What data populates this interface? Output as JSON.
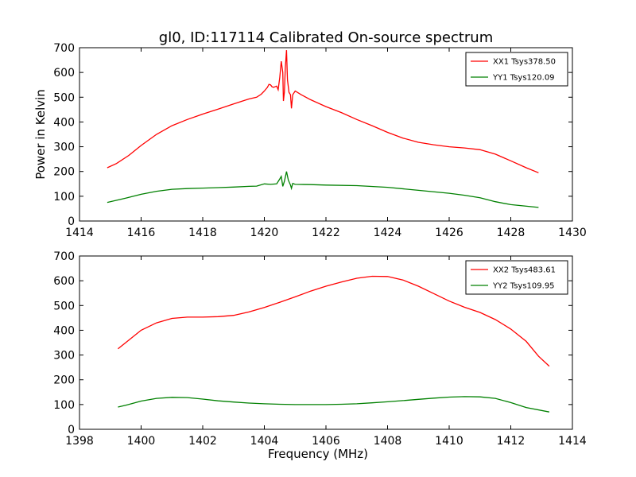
{
  "chart_data": [
    {
      "type": "line",
      "title": "gl0, ID:117114 Calibrated On-source spectrum",
      "xlabel": "",
      "ylabel": "Power in Kelvin",
      "xlim": [
        1414,
        1430
      ],
      "ylim": [
        0,
        700
      ],
      "xticks": [
        1414,
        1416,
        1418,
        1420,
        1422,
        1424,
        1426,
        1428,
        1430
      ],
      "yticks": [
        0,
        100,
        200,
        300,
        400,
        500,
        600,
        700
      ],
      "grid": false,
      "legend_position": "top-right",
      "series": [
        {
          "name": "XX1 Tsys378.50",
          "color": "#ff0000",
          "points": [
            [
              1414.9,
              215
            ],
            [
              1415.2,
              232
            ],
            [
              1415.6,
              265
            ],
            [
              1416.0,
              305
            ],
            [
              1416.5,
              350
            ],
            [
              1417.0,
              385
            ],
            [
              1417.5,
              410
            ],
            [
              1418.0,
              432
            ],
            [
              1418.5,
              452
            ],
            [
              1419.0,
              473
            ],
            [
              1419.5,
              493
            ],
            [
              1419.75,
              500
            ],
            [
              1419.9,
              512
            ],
            [
              1420.0,
              525
            ],
            [
              1420.1,
              540
            ],
            [
              1420.15,
              552
            ],
            [
              1420.2,
              550
            ],
            [
              1420.25,
              542
            ],
            [
              1420.3,
              540
            ],
            [
              1420.4,
              545
            ],
            [
              1420.45,
              530
            ],
            [
              1420.5,
              580
            ],
            [
              1420.55,
              645
            ],
            [
              1420.6,
              600
            ],
            [
              1420.62,
              485
            ],
            [
              1420.65,
              520
            ],
            [
              1420.68,
              620
            ],
            [
              1420.72,
              690
            ],
            [
              1420.75,
              570
            ],
            [
              1420.8,
              520
            ],
            [
              1420.85,
              510
            ],
            [
              1420.88,
              455
            ],
            [
              1420.92,
              510
            ],
            [
              1421.0,
              525
            ],
            [
              1421.2,
              510
            ],
            [
              1421.5,
              490
            ],
            [
              1422.0,
              462
            ],
            [
              1422.5,
              438
            ],
            [
              1423.0,
              410
            ],
            [
              1423.5,
              385
            ],
            [
              1424.0,
              358
            ],
            [
              1424.5,
              335
            ],
            [
              1425.0,
              318
            ],
            [
              1425.5,
              308
            ],
            [
              1426.0,
              300
            ],
            [
              1426.5,
              295
            ],
            [
              1427.0,
              288
            ],
            [
              1427.5,
              270
            ],
            [
              1428.0,
              243
            ],
            [
              1428.5,
              215
            ],
            [
              1428.9,
              195
            ]
          ]
        },
        {
          "name": "YY1 Tsys120.09",
          "color": "#008000",
          "points": [
            [
              1414.9,
              75
            ],
            [
              1415.5,
              92
            ],
            [
              1416.0,
              108
            ],
            [
              1416.5,
              120
            ],
            [
              1417.0,
              128
            ],
            [
              1417.5,
              131
            ],
            [
              1418.0,
              133
            ],
            [
              1418.5,
              135
            ],
            [
              1419.0,
              137
            ],
            [
              1419.5,
              140
            ],
            [
              1419.75,
              141
            ],
            [
              1420.0,
              150
            ],
            [
              1420.2,
              148
            ],
            [
              1420.4,
              150
            ],
            [
              1420.5,
              170
            ],
            [
              1420.55,
              180
            ],
            [
              1420.6,
              140
            ],
            [
              1420.65,
              160
            ],
            [
              1420.72,
              200
            ],
            [
              1420.78,
              165
            ],
            [
              1420.85,
              145
            ],
            [
              1420.88,
              132
            ],
            [
              1420.92,
              152
            ],
            [
              1421.0,
              148
            ],
            [
              1421.5,
              147
            ],
            [
              1422.0,
              145
            ],
            [
              1423.0,
              143
            ],
            [
              1424.0,
              136
            ],
            [
              1425.0,
              124
            ],
            [
              1426.0,
              112
            ],
            [
              1426.5,
              104
            ],
            [
              1427.0,
              94
            ],
            [
              1427.5,
              78
            ],
            [
              1428.0,
              66
            ],
            [
              1428.9,
              55
            ]
          ]
        }
      ]
    },
    {
      "type": "line",
      "title": "",
      "xlabel": "Frequency (MHz)",
      "ylabel": "",
      "xlim": [
        1398,
        1414
      ],
      "ylim": [
        0,
        700
      ],
      "xticks": [
        1398,
        1400,
        1402,
        1404,
        1406,
        1408,
        1410,
        1412,
        1414
      ],
      "yticks": [
        0,
        100,
        200,
        300,
        400,
        500,
        600,
        700
      ],
      "grid": false,
      "legend_position": "top-right",
      "series": [
        {
          "name": "XX2 Tsys483.61",
          "color": "#ff0000",
          "points": [
            [
              1399.25,
              325
            ],
            [
              1399.5,
              350
            ],
            [
              1400.0,
              400
            ],
            [
              1400.5,
              430
            ],
            [
              1401.0,
              448
            ],
            [
              1401.5,
              453
            ],
            [
              1402.0,
              453
            ],
            [
              1402.5,
              455
            ],
            [
              1403.0,
              460
            ],
            [
              1403.5,
              474
            ],
            [
              1404.0,
              492
            ],
            [
              1404.5,
              513
            ],
            [
              1405.0,
              535
            ],
            [
              1405.5,
              558
            ],
            [
              1406.0,
              578
            ],
            [
              1406.5,
              595
            ],
            [
              1407.0,
              610
            ],
            [
              1407.5,
              618
            ],
            [
              1408.0,
              617
            ],
            [
              1408.5,
              603
            ],
            [
              1409.0,
              578
            ],
            [
              1409.5,
              548
            ],
            [
              1410.0,
              518
            ],
            [
              1410.5,
              493
            ],
            [
              1411.0,
              472
            ],
            [
              1411.5,
              443
            ],
            [
              1412.0,
              405
            ],
            [
              1412.5,
              355
            ],
            [
              1412.9,
              295
            ],
            [
              1413.25,
              255
            ]
          ]
        },
        {
          "name": "YY2 Tsys109.95",
          "color": "#008000",
          "points": [
            [
              1399.25,
              90
            ],
            [
              1399.5,
              97
            ],
            [
              1400.0,
              114
            ],
            [
              1400.5,
              125
            ],
            [
              1401.0,
              129
            ],
            [
              1401.5,
              128
            ],
            [
              1402.0,
              122
            ],
            [
              1402.5,
              115
            ],
            [
              1403.0,
              110
            ],
            [
              1403.5,
              106
            ],
            [
              1404.0,
              103
            ],
            [
              1404.5,
              101
            ],
            [
              1405.0,
              100
            ],
            [
              1405.5,
              100
            ],
            [
              1406.0,
              100
            ],
            [
              1406.5,
              101
            ],
            [
              1407.0,
              103
            ],
            [
              1407.5,
              107
            ],
            [
              1408.0,
              111
            ],
            [
              1408.5,
              116
            ],
            [
              1409.0,
              121
            ],
            [
              1409.5,
              126
            ],
            [
              1410.0,
              130
            ],
            [
              1410.5,
              132
            ],
            [
              1411.0,
              131
            ],
            [
              1411.5,
              125
            ],
            [
              1412.0,
              108
            ],
            [
              1412.5,
              88
            ],
            [
              1413.25,
              70
            ]
          ]
        }
      ]
    }
  ]
}
